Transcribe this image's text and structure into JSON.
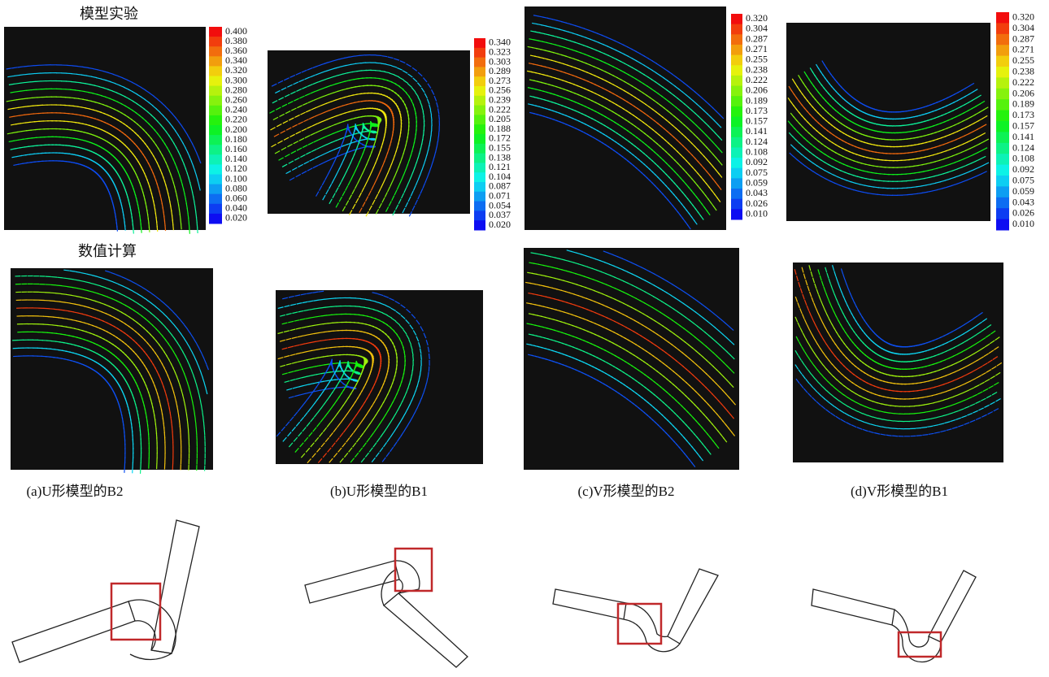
{
  "labels": {
    "experiment": "模型实验",
    "numerical": "数值计算"
  },
  "captions": [
    "(a)U形模型的B2",
    "(b)U形模型的B1",
    "(c)V形模型的B2",
    "(d)V形模型的B1"
  ],
  "colorbars": [
    {
      "ticks": [
        "0.400",
        "0.380",
        "0.360",
        "0.340",
        "0.320",
        "0.300",
        "0.280",
        "0.260",
        "0.240",
        "0.220",
        "0.200",
        "0.180",
        "0.160",
        "0.140",
        "0.120",
        "0.100",
        "0.080",
        "0.060",
        "0.040",
        "0.020"
      ]
    },
    {
      "ticks": [
        "0.340",
        "0.323",
        "0.303",
        "0.289",
        "0.273",
        "0.256",
        "0.239",
        "0.222",
        "0.205",
        "0.188",
        "0.172",
        "0.155",
        "0.138",
        "0.121",
        "0.104",
        "0.087",
        "0.071",
        "0.054",
        "0.037",
        "0.020"
      ]
    },
    {
      "ticks": [
        "0.320",
        "0.304",
        "0.287",
        "0.271",
        "0.255",
        "0.238",
        "0.222",
        "0.206",
        "0.189",
        "0.173",
        "0.157",
        "0.141",
        "0.124",
        "0.108",
        "0.092",
        "0.075",
        "0.059",
        "0.043",
        "0.026",
        "0.010"
      ]
    },
    {
      "ticks": [
        "0.320",
        "0.304",
        "0.287",
        "0.271",
        "0.255",
        "0.238",
        "0.222",
        "0.206",
        "0.189",
        "0.173",
        "0.157",
        "0.141",
        "0.124",
        "0.108",
        "0.092",
        "0.075",
        "0.059",
        "0.043",
        "0.026",
        "0.010"
      ]
    }
  ]
}
